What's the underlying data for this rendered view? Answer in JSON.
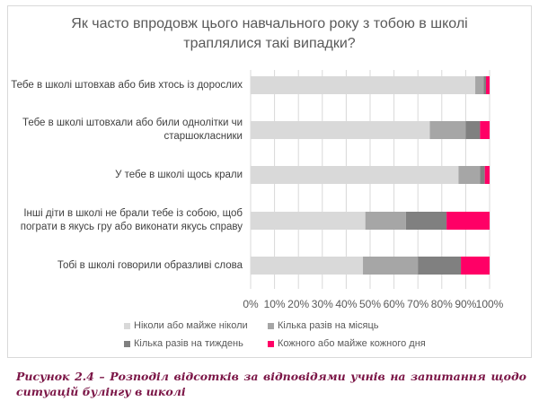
{
  "chart_data": {
    "type": "bar",
    "orientation": "horizontal",
    "stacked": "percent",
    "title": "Як часто впродовж цього навчального року з тобою в школі траплялися такі випадки?",
    "title_lines": [
      "Як часто впродовж цього навчального року з тобою в школі",
      "траплялися такі випадки?"
    ],
    "categories": [
      "Тебе в школі штовхав або бив хтось із дорослих",
      "Тебе в школі штовхали або били однолітки чи старшокласники",
      "У тебе в школі щось крали",
      "Інші діти в школі не брали тебе із собою, щоб пограти в якусь гру або виконати якусь справу",
      "Тобі в школі говорили образливі слова"
    ],
    "category_lines": [
      [
        "Тебе в школі штовхав або бив хтось із дорослих"
      ],
      [
        "Тебе в школі штовхали або били однолітки чи",
        "старшокласники"
      ],
      [
        "У тебе в школі щось крали"
      ],
      [
        "Інші діти в школі не брали тебе із собою, щоб",
        "пограти в якусь гру або виконати якусь справу"
      ],
      [
        "Тобі в школі говорили образливі слова"
      ]
    ],
    "series": [
      {
        "name": "Ніколи або майже ніколи",
        "color": "#d9d9d9",
        "values": [
          94,
          75,
          87,
          48,
          47
        ]
      },
      {
        "name": "Кілька разів на місяць",
        "color": "#a6a6a6",
        "values": [
          3.5,
          15,
          9,
          17,
          23
        ]
      },
      {
        "name": "Кілька разів на тиждень",
        "color": "#808080",
        "values": [
          1,
          6,
          2,
          17,
          18
        ]
      },
      {
        "name": "Кожного або майже кожного дня",
        "color": "#ff0066",
        "values": [
          1.5,
          4,
          2,
          18,
          12
        ]
      }
    ],
    "xlim": [
      0,
      100
    ],
    "xticks": [
      "0%",
      "10%",
      "20%",
      "30%",
      "40%",
      "50%",
      "60%",
      "70%",
      "80%",
      "90%",
      "100%"
    ],
    "grid": true,
    "legend_position": "bottom"
  },
  "caption": {
    "line1": "Рисунок 2.4 – Розподіл відсотків за відповідями учнів на запитання щодо",
    "line2": "ситуацій булінгу в школі"
  }
}
